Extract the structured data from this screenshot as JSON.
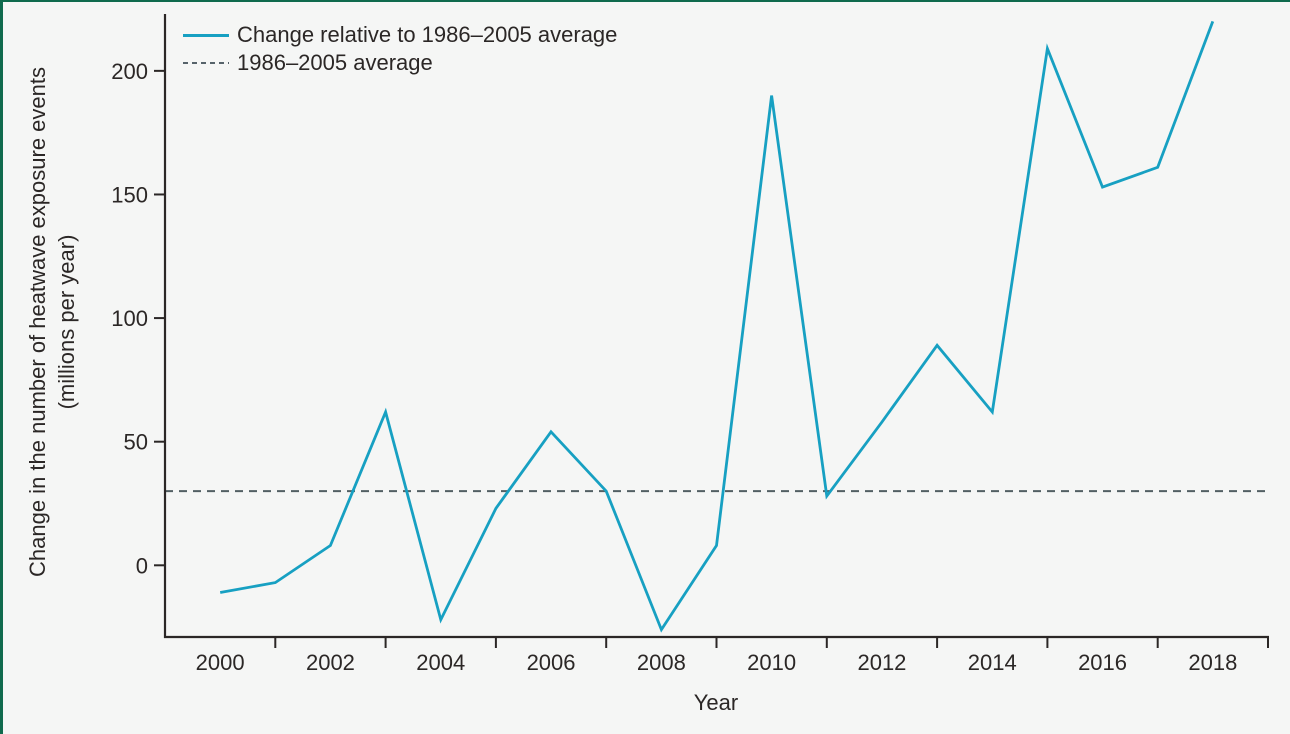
{
  "window": {
    "background": "#f5f6f5",
    "accent_border_color": "#0f6a4d"
  },
  "legend": {
    "items": [
      {
        "label": "Change relative to 1986–2005 average",
        "style": "solid",
        "color": "#17a0c2"
      },
      {
        "label": "1986–2005 average",
        "style": "dashed",
        "color": "#56636a"
      }
    ]
  },
  "chart_data": {
    "type": "line",
    "title": "",
    "xlabel": "Year",
    "ylabel": "Change in the number of heatwave exposure events (millions per year)",
    "ylabel_lines": [
      "Change in the number of heatwave exposure events",
      "(millions per year)"
    ],
    "x": [
      2000,
      2001,
      2002,
      2003,
      2004,
      2005,
      2006,
      2007,
      2008,
      2009,
      2010,
      2011,
      2012,
      2013,
      2014,
      2015,
      2016,
      2017,
      2018
    ],
    "series": [
      {
        "name": "Change relative to 1986–2005 average",
        "color": "#17a0c2",
        "style": "solid",
        "values": [
          -11,
          -7,
          8,
          62,
          -22,
          23,
          54,
          30,
          -26,
          8,
          190,
          28,
          58,
          89,
          62,
          209,
          153,
          161,
          220
        ]
      },
      {
        "name": "1986–2005 average",
        "color": "#525f63",
        "style": "dashed",
        "constant": 30
      }
    ],
    "x_tick_labels": [
      2000,
      2002,
      2004,
      2006,
      2008,
      2010,
      2012,
      2014,
      2016,
      2018
    ],
    "x_tick_marks": [
      2001,
      2003,
      2005,
      2007,
      2009,
      2011,
      2013,
      2015,
      2017,
      2019
    ],
    "y_ticks": [
      0,
      50,
      100,
      150,
      200
    ],
    "xlim": [
      1999,
      2019
    ],
    "ylim": [
      -29,
      223
    ],
    "grid": false,
    "legend_position": "top-left",
    "axis_color": "#2b2726"
  }
}
